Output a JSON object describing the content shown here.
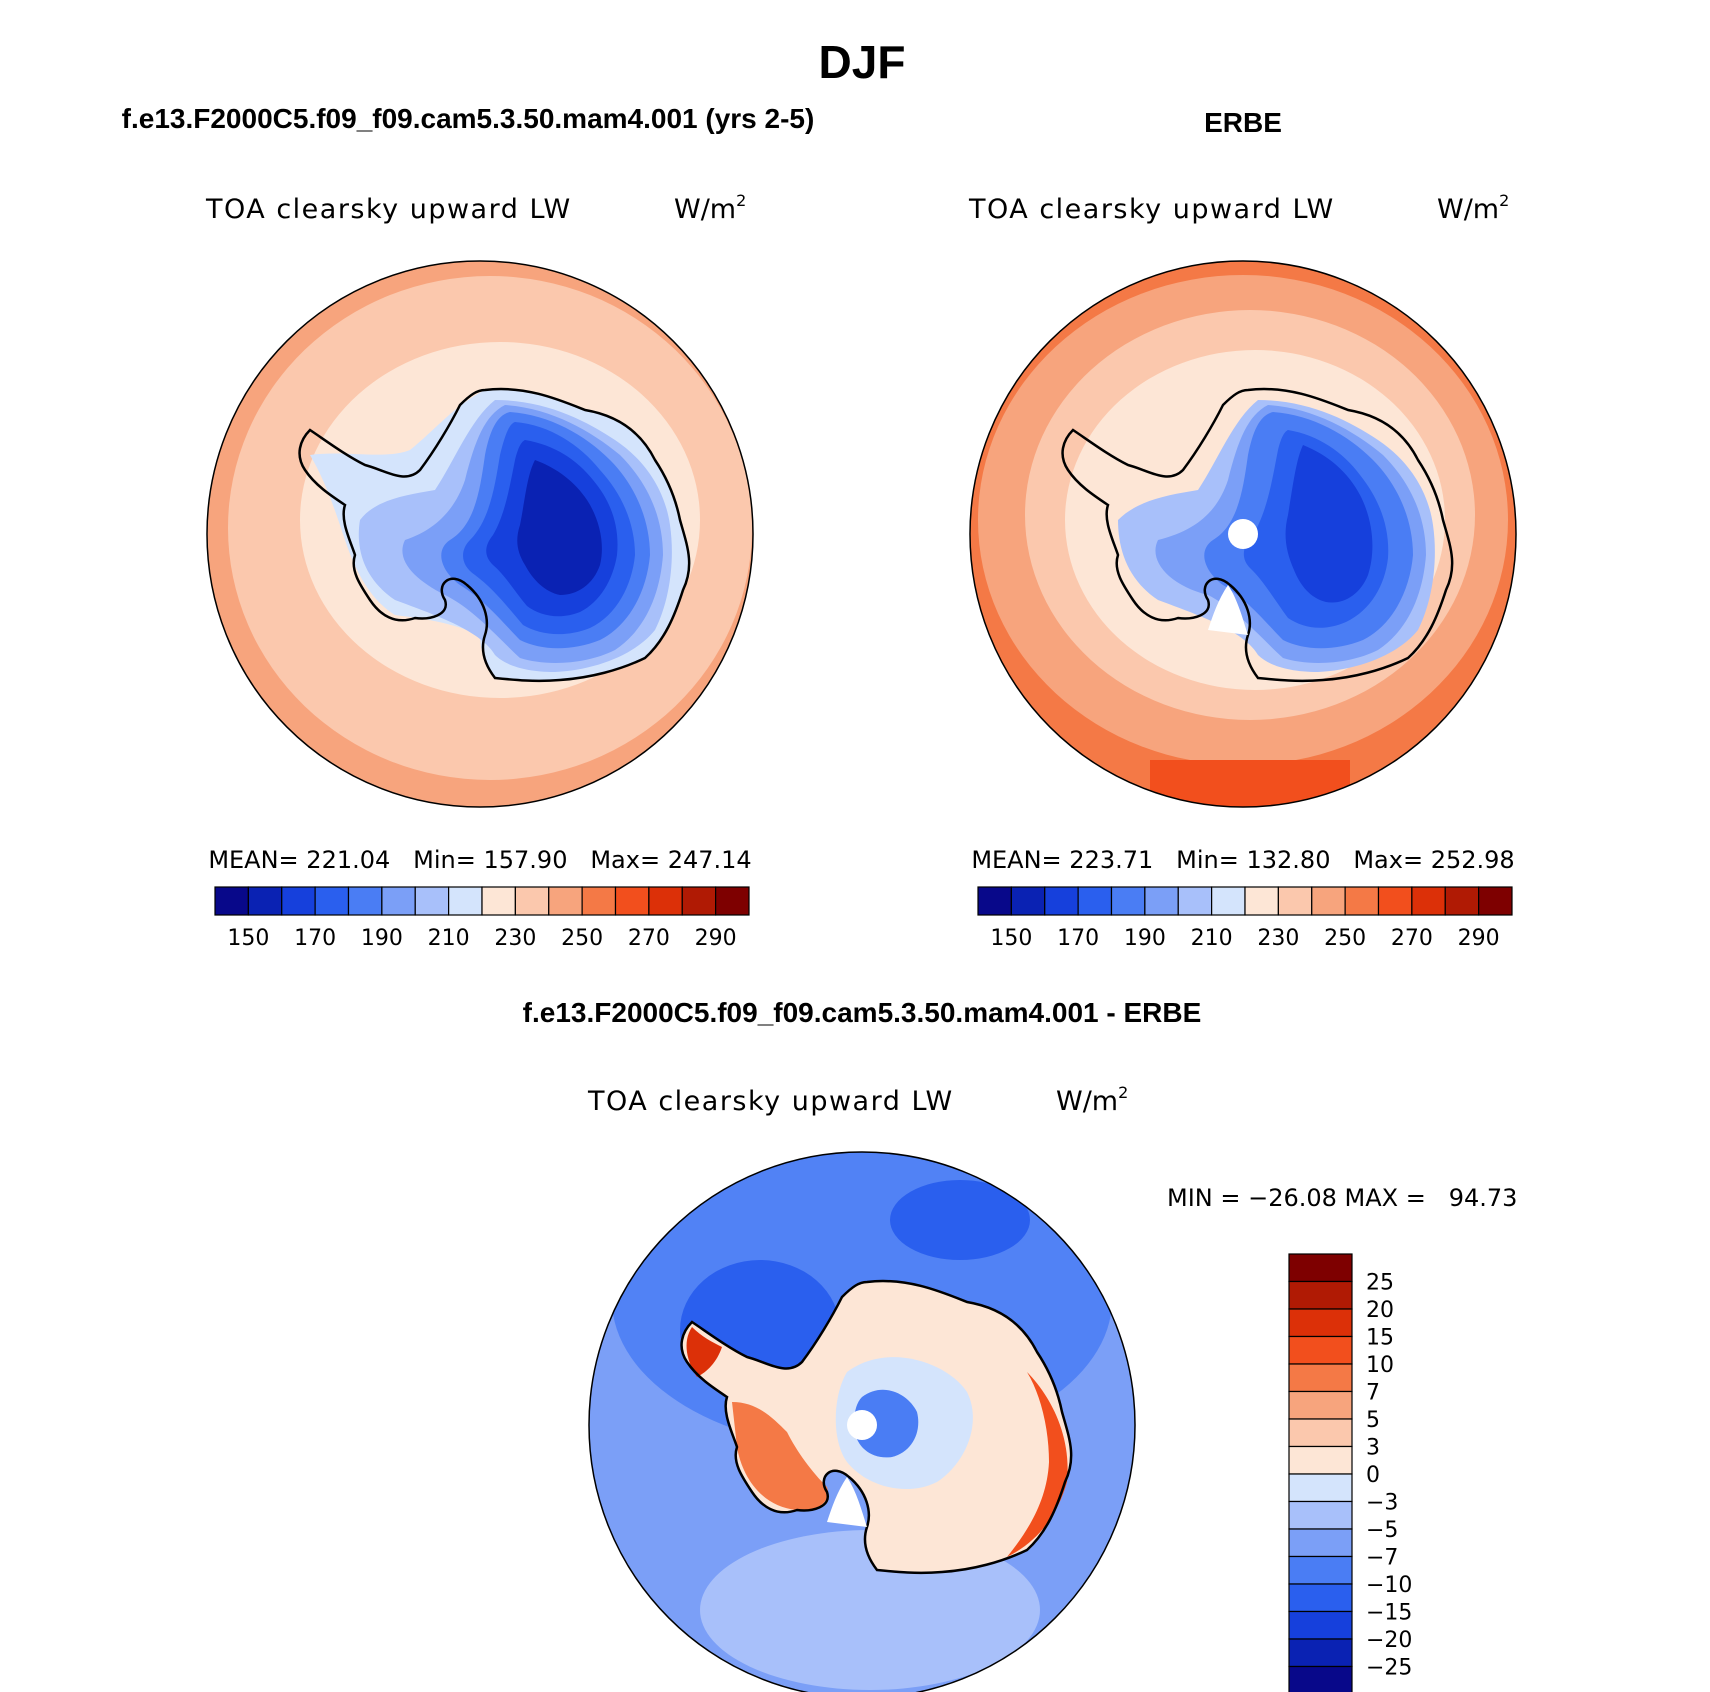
{
  "figure_title": "DJF",
  "colors": {
    "seq": [
      "#08088a",
      "#0a22b3",
      "#1640dc",
      "#2a5fee",
      "#4a7df4",
      "#7b9ff7",
      "#a8c0fa",
      "#d4e4fc",
      "#fde6d6",
      "#fbc8ad",
      "#f7a47d",
      "#f47946",
      "#f24f1d",
      "#dc3008",
      "#b01a04",
      "#7e0000"
    ],
    "diff": [
      "#08088a",
      "#0a22b3",
      "#1640dc",
      "#2a5fee",
      "#4a7df4",
      "#7b9ff7",
      "#a8c0fa",
      "#d4e4fc",
      "#fde6d6",
      "#fbc8ad",
      "#f7a47d",
      "#f47946",
      "#f24f1d",
      "#dc3008",
      "#b01a04",
      "#7e0000"
    ]
  },
  "panels": [
    {
      "id": "model",
      "heading": "f.e13.F2000C5.f09_f09.cam5.3.50.mam4.001 (yrs 2-5)",
      "variable": "TOA clearsky upward LW",
      "units_base": "W/m",
      "units_sup": "2",
      "stats": "MEAN= 221.04   Min= 157.90   Max= 247.14",
      "colorbar_labels": [
        "150",
        "170",
        "190",
        "210",
        "230",
        "250",
        "270",
        "290"
      ]
    },
    {
      "id": "obs",
      "heading": "ERBE",
      "variable": "TOA clearsky upward LW",
      "units_base": "W/m",
      "units_sup": "2",
      "stats": "MEAN= 223.71   Min= 132.80   Max= 252.98",
      "colorbar_labels": [
        "150",
        "170",
        "190",
        "210",
        "230",
        "250",
        "270",
        "290"
      ]
    },
    {
      "id": "diff",
      "heading": "f.e13.F2000C5.f09_f09.cam5.3.50.mam4.001 - ERBE",
      "variable": "TOA clearsky upward LW",
      "units_base": "W/m",
      "units_sup": "2",
      "stats": "MIN = −26.08 MAX =   94.73",
      "colorbar_labels": [
        "25",
        "20",
        "15",
        "10",
        "7",
        "5",
        "3",
        "0",
        "−3",
        "−5",
        "−7",
        "−10",
        "−15",
        "−20",
        "−25"
      ]
    }
  ]
}
